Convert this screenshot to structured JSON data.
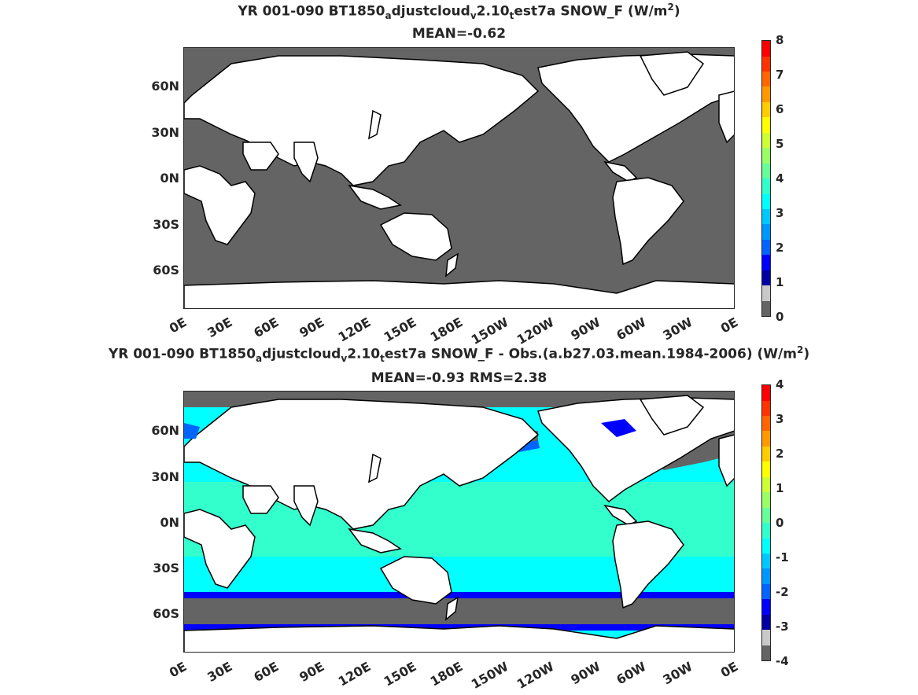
{
  "panel1": {
    "title_parts": [
      "YR 001-090 BT1850",
      "a",
      "djustcloud",
      "v",
      "2.10",
      "t",
      "est7a  SNOW_F (W/m",
      "2",
      ")"
    ],
    "subtitle": "MEAN=-0.62",
    "lat_labels": [
      "60N",
      "30N",
      "0N",
      "30S",
      "60S"
    ],
    "lon_labels": [
      "0E",
      "30E",
      "60E",
      "90E",
      "120E",
      "150E",
      "180E",
      "150W",
      "120W",
      "90W",
      "60W",
      "30W",
      "0E"
    ],
    "colorbar_labels": [
      "0",
      "1",
      "2",
      "3",
      "4",
      "5",
      "6",
      "7",
      "8"
    ],
    "colorbar_colors": [
      "#646464",
      "#c8c8c8",
      "#0000a0",
      "#0000ff",
      "#0064ff",
      "#0096ff",
      "#00c8ff",
      "#00ffff",
      "#33ffcc",
      "#66ff99",
      "#99ff66",
      "#ccff33",
      "#ffff00",
      "#ffcc00",
      "#ff9900",
      "#ff6600",
      "#ff3300",
      "#ff0000"
    ],
    "ocean_color": "#646464"
  },
  "panel2": {
    "title_parts": [
      "YR 001-090 BT1850",
      "a",
      "djustcloud",
      "v",
      "2.10",
      "t",
      "est7a SNOW_F - Obs.(a.b27.03.mean.1984-2006) (W/m",
      "2",
      ")"
    ],
    "subtitle": "MEAN=-0.93 RMS=2.38",
    "lat_labels": [
      "60N",
      "30N",
      "0N",
      "30S",
      "60S"
    ],
    "lon_labels": [
      "0E",
      "30E",
      "60E",
      "90E",
      "120E",
      "150E",
      "180E",
      "150W",
      "120W",
      "90W",
      "60W",
      "30W",
      "0E"
    ],
    "colorbar_labels": [
      "-4",
      "-3",
      "-2",
      "-1",
      "0",
      "1",
      "2",
      "3",
      "4"
    ],
    "colorbar_colors": [
      "#646464",
      "#c8c8c8",
      "#0000a0",
      "#0000ff",
      "#0064ff",
      "#0096ff",
      "#00c8ff",
      "#00ffff",
      "#33ffcc",
      "#66ff99",
      "#99ff66",
      "#ccff33",
      "#ffff00",
      "#ffcc00",
      "#ff9900",
      "#ff6600",
      "#ff3300",
      "#ff0000"
    ],
    "ocean_tropics_color": "#33ffcc",
    "ocean_midlat_color": "#00ffff",
    "ocean_front_color": "#0000ff",
    "ocean_polar_color": "#646464"
  }
}
